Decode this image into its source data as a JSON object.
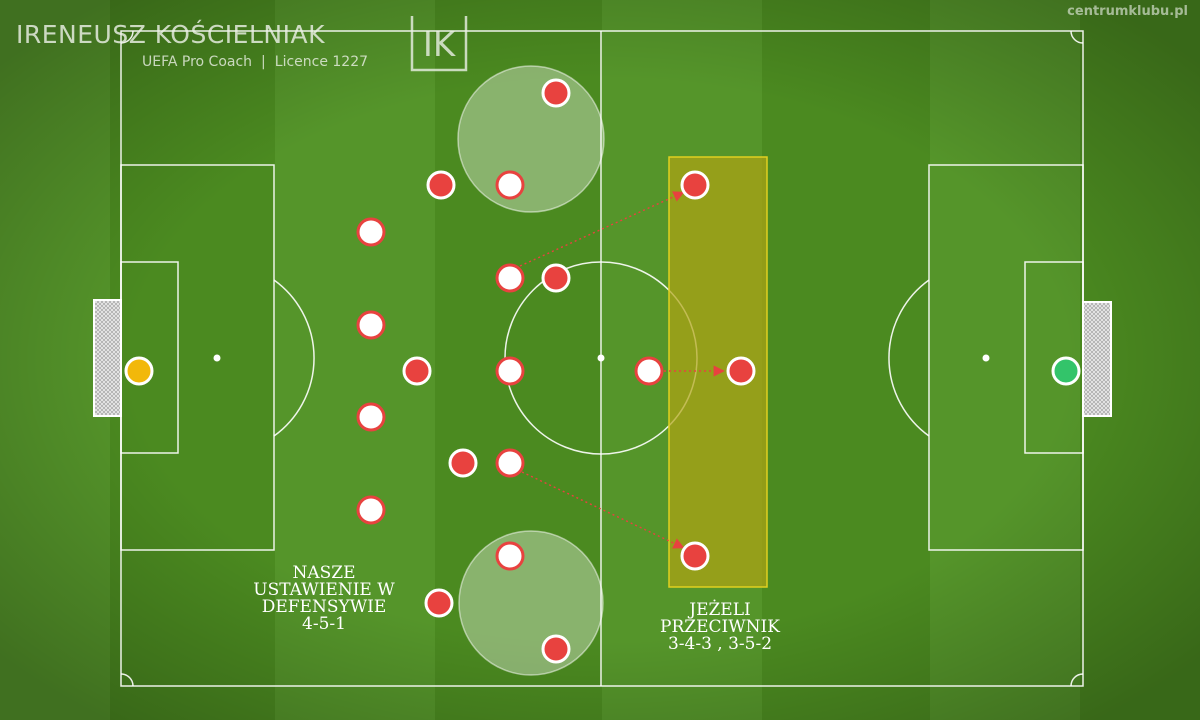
{
  "brand": {
    "name": "IRENEUSZ KOŚCIELNIAK",
    "subtitle_left": "UEFA Pro Coach",
    "separator": "|",
    "subtitle_right": "Licence 1227",
    "logo_letters": "IK"
  },
  "website": "centrumklubu.pl",
  "captions": {
    "ours": [
      "NASZE",
      "USTAWIENIE W",
      "DEFENSYWIE",
      "4-5-1"
    ],
    "opponent": [
      "JEŻELI",
      "PRZECIWNIK",
      "3-4-3 , 3-5-2"
    ]
  },
  "colors": {
    "grass_dark": "#4b8a20",
    "grass_light": "#5a9a2a",
    "lines": "#ffffff",
    "red_player": "#e8423f",
    "white_player": "#ffffff",
    "player_outline": "#e8423f",
    "our_keeper": "#f2b80a",
    "opponent_keeper": "#33c46a",
    "zone_fill": "#a2a21a",
    "zone_border": "#e0d020",
    "arrow": "#e8423f"
  },
  "players": {
    "our_keeper": {
      "team": "ours",
      "role": "goalkeeper"
    },
    "opponent_keeper": {
      "team": "opponent",
      "role": "goalkeeper"
    },
    "ours_count": 10,
    "opponent_count": 10
  },
  "arrows": 3
}
